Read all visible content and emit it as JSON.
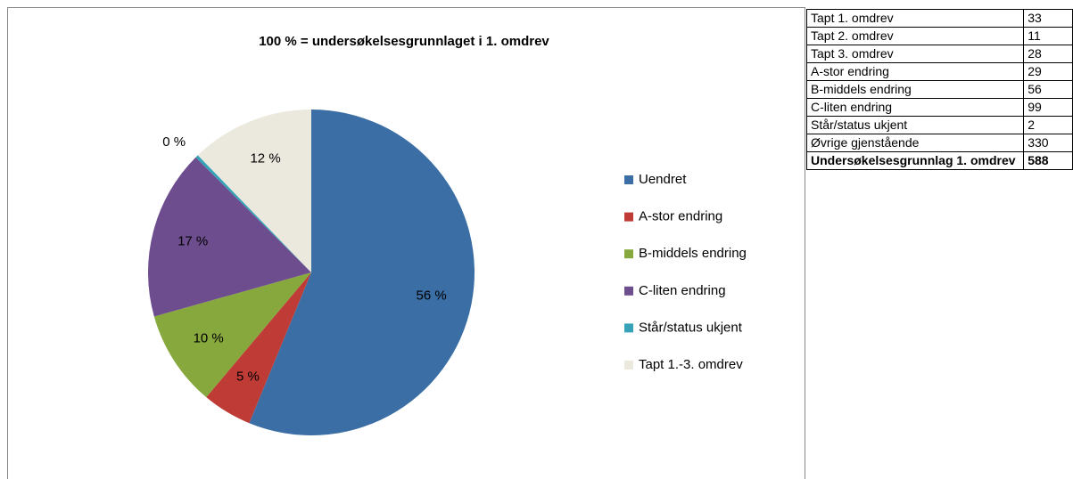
{
  "chart_data": {
    "type": "pie",
    "title": "100 % = undersøkelsesgrunnlaget i 1. omdrev",
    "categories": [
      "Uendret",
      "A-stor endring",
      "B-middels endring",
      "C-liten endring",
      "Står/status ukjent",
      "Tapt 1.-3. omdrev"
    ],
    "values": [
      56.1,
      4.9,
      9.5,
      16.8,
      0.3,
      12.2
    ],
    "value_labels": [
      "56 %",
      "5 %",
      "10 %",
      "17 %",
      "0 %",
      "12 %"
    ],
    "colors": [
      "#3a6ea5",
      "#be3b36",
      "#86a83c",
      "#6d4d8e",
      "#36a2b8",
      "#ebe8dd"
    ],
    "legend": "right"
  },
  "table": {
    "rows": [
      [
        "Tapt 1. omdrev",
        "33"
      ],
      [
        "Tapt 2. omdrev",
        "11"
      ],
      [
        "Tapt 3. omdrev",
        "28"
      ],
      [
        "A-stor endring",
        "29"
      ],
      [
        "B-middels endring",
        "56"
      ],
      [
        "C-liten endring",
        "99"
      ],
      [
        "Står/status ukjent",
        "2"
      ],
      [
        "Øvrige gjenstående",
        "330"
      ],
      [
        "Undersøkelsesgrunnlag 1. omdrev",
        "588"
      ]
    ]
  }
}
